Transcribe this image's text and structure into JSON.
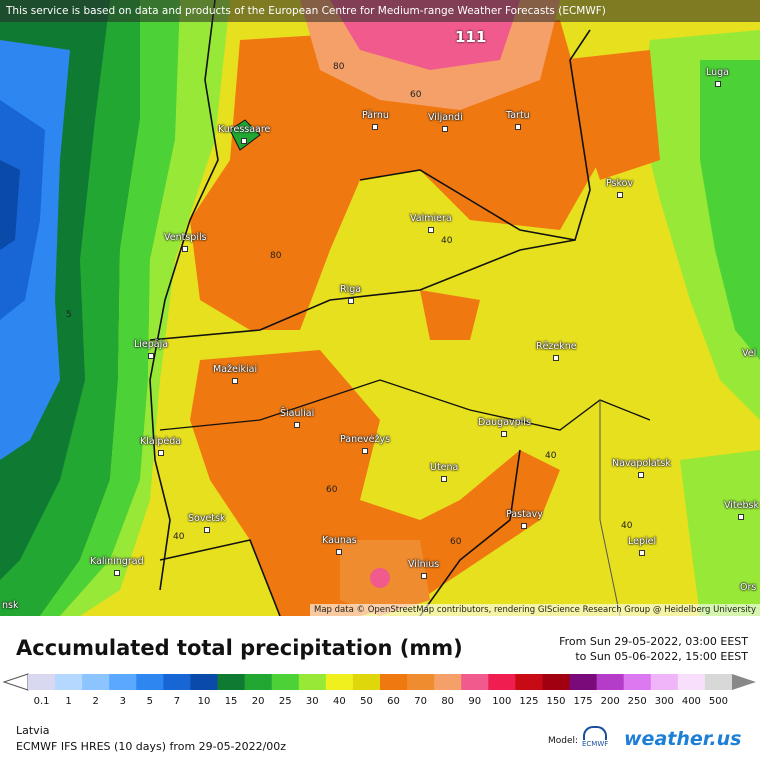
{
  "disclaimer": "This service is based on data and products of the European Centre for Medium-range Weather Forecasts (ECMWF)",
  "attribution": "Map data © OpenStreetMap contributors, rendering GIScience Research Group @ Heidelberg University",
  "max_value": "111",
  "cities": {
    "kuressaare": "Kuressaare",
    "parnu": "Pärnu",
    "viljandi": "Viljandi",
    "tartu": "Tartu",
    "luga": "Luga",
    "pskov": "Pskov",
    "ventspils": "Ventspils",
    "valmiera": "Valmiera",
    "riga": "Riga",
    "liepaja": "Liepāja",
    "mazeikiai": "Mažeikiai",
    "rezekne": "Rēzekne",
    "siauliai": "Šiauliai",
    "klaipeda": "Klaipėda",
    "panevezys": "Panevėžys",
    "daugavpils": "Daugavpils",
    "utena": "Utena",
    "navapolatsk": "Navapolatsk",
    "vitebsk": "Vitebsk",
    "sovetsk": "Sovetsk",
    "pastavy": "Pastavy",
    "lepiel": "Lepiel",
    "kaunas": "Kaunas",
    "kaliningrad": "Kaliningrad",
    "vilnius": "Vilnius",
    "vel": "Vel",
    "ors": "Ors",
    "nsk": "nsk"
  },
  "contours": {
    "c80a": "80",
    "c60a": "60",
    "c40a": "40",
    "c80b": "80",
    "c5": "5",
    "c40b": "40",
    "c60b": "60",
    "c60c": "60",
    "c40c": "40",
    "c40d": "40"
  },
  "legend": {
    "title": "Accumulated total precipitation (mm)",
    "from": "From Sun 29-05-2022, 03:00 EEST",
    "to": "to Sun 05-06-2022, 15:00 EEST",
    "ticks": [
      "0.1",
      "1",
      "2",
      "3",
      "5",
      "7",
      "10",
      "15",
      "20",
      "25",
      "30",
      "40",
      "50",
      "60",
      "70",
      "80",
      "90",
      "100",
      "125",
      "150",
      "175",
      "200",
      "250",
      "300",
      "400",
      "500"
    ],
    "colors": [
      "#d8d8f0",
      "#b4d8ff",
      "#8cc4ff",
      "#5aa8ff",
      "#2e86f0",
      "#1866d6",
      "#0a4aa8",
      "#0e7a32",
      "#22a832",
      "#4cd236",
      "#98e838",
      "#f0f01e",
      "#e0d60c",
      "#f07810",
      "#f08c30",
      "#f4a068",
      "#f05a8c",
      "#f01e50",
      "#c80a14",
      "#a00010",
      "#7a0a7a",
      "#b43cc8",
      "#dc78f0",
      "#f0b4f8",
      "#f8e0fc",
      "#d8d8d8"
    ],
    "region": "Latvia",
    "run": "ECMWF IFS HRES (10 days) from 29-05-2022/00z",
    "model_label": "Model:",
    "ecmwf": "ECMWF",
    "brand": "weather.us"
  }
}
